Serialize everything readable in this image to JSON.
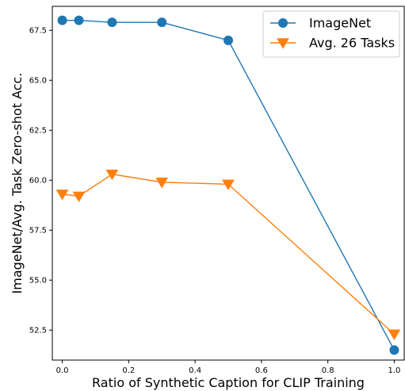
{
  "chart_data": {
    "type": "line",
    "title": "",
    "xlabel": "Ratio of Synthetic Caption for CLIP Training",
    "ylabel": "ImageNet/Avg. Task Zero-shot Acc.",
    "xlim": [
      -0.03,
      1.03
    ],
    "ylim": [
      51.0,
      68.7
    ],
    "x_ticks": [
      0.0,
      0.2,
      0.4,
      0.6,
      0.8,
      1.0
    ],
    "x_tick_labels": [
      "0.0",
      "0.2",
      "0.4",
      "0.6",
      "0.8",
      "1.0"
    ],
    "y_ticks": [
      52.5,
      55.0,
      57.5,
      60.0,
      62.5,
      65.0,
      67.5
    ],
    "y_tick_labels": [
      "52.5",
      "55.0",
      "57.5",
      "60.0",
      "62.5",
      "65.0",
      "67.5"
    ],
    "grid": false,
    "legend_position": "top-right",
    "x": [
      0.0,
      0.05,
      0.15,
      0.3,
      0.5,
      1.0
    ],
    "series": [
      {
        "name": "ImageNet",
        "color": "#1f77b4",
        "marker": "circle",
        "values": [
          68.0,
          68.0,
          67.9,
          67.9,
          67.0,
          51.5
        ]
      },
      {
        "name": "Avg. 26 Tasks",
        "color": "#ff7f0e",
        "marker": "triangle-down",
        "values": [
          59.3,
          59.2,
          60.3,
          59.9,
          59.8,
          52.3
        ]
      }
    ]
  }
}
